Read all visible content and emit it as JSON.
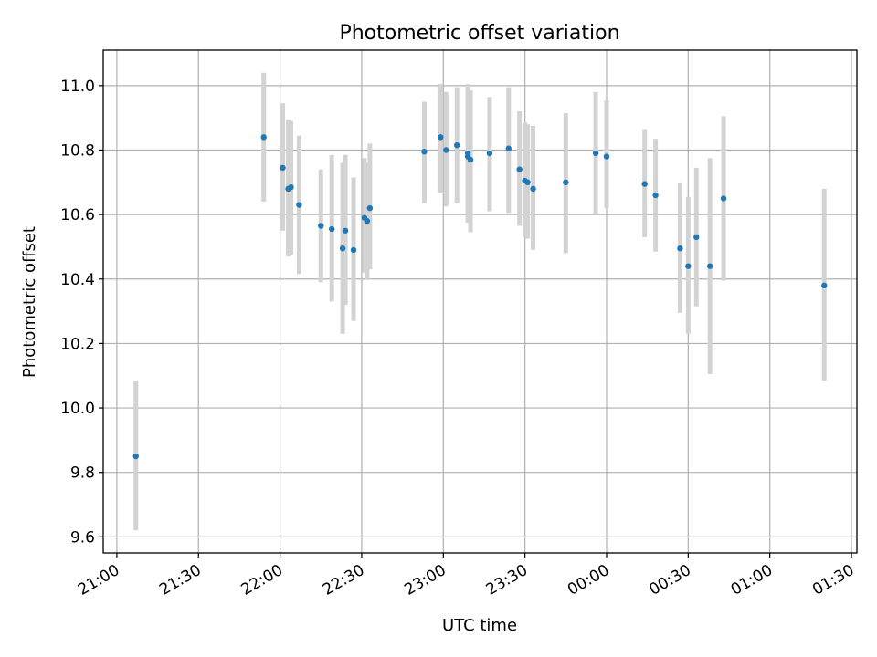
{
  "chart_data": {
    "type": "scatter",
    "title": "Photometric offset variation",
    "xlabel": "UTC time",
    "ylabel": "Photometric offset",
    "x_axis_type": "time",
    "xlim": [
      "20:55",
      "01:32"
    ],
    "ylim": [
      9.55,
      11.11
    ],
    "grid": true,
    "x_ticks": [
      {
        "time": "21:00",
        "label": "21:00"
      },
      {
        "time": "21:30",
        "label": "21:30"
      },
      {
        "time": "22:00",
        "label": "22:00"
      },
      {
        "time": "22:30",
        "label": "22:30"
      },
      {
        "time": "23:00",
        "label": "23:00"
      },
      {
        "time": "23:30",
        "label": "23:30"
      },
      {
        "time": "00:00",
        "label": "00:00"
      },
      {
        "time": "00:30",
        "label": "00:30"
      },
      {
        "time": "01:00",
        "label": "01:00"
      },
      {
        "time": "01:30",
        "label": "01:30"
      }
    ],
    "y_ticks": [
      {
        "value": 9.6,
        "label": "9.6"
      },
      {
        "value": 9.8,
        "label": "9.8"
      },
      {
        "value": 10.0,
        "label": "10.0"
      },
      {
        "value": 10.2,
        "label": "10.2"
      },
      {
        "value": 10.4,
        "label": "10.4"
      },
      {
        "value": 10.6,
        "label": "10.6"
      },
      {
        "value": 10.8,
        "label": "10.8"
      },
      {
        "value": 11.0,
        "label": "11.0"
      }
    ],
    "colors": {
      "marker": "#1f77b4",
      "errorbar": "#d3d3d3"
    },
    "points": [
      {
        "time": "21:07",
        "y": 9.85,
        "err_low": 9.62,
        "err_high": 10.085
      },
      {
        "time": "21:54",
        "y": 10.84,
        "err_low": 10.64,
        "err_high": 11.04
      },
      {
        "time": "22:01",
        "y": 10.745,
        "err_low": 10.55,
        "err_high": 10.945
      },
      {
        "time": "22:03",
        "y": 10.68,
        "err_low": 10.47,
        "err_high": 10.895
      },
      {
        "time": "22:04",
        "y": 10.685,
        "err_low": 10.475,
        "err_high": 10.89
      },
      {
        "time": "22:07",
        "y": 10.63,
        "err_low": 10.415,
        "err_high": 10.845
      },
      {
        "time": "22:15",
        "y": 10.565,
        "err_low": 10.39,
        "err_high": 10.74
      },
      {
        "time": "22:19",
        "y": 10.555,
        "err_low": 10.33,
        "err_high": 10.785
      },
      {
        "time": "22:23",
        "y": 10.495,
        "err_low": 10.23,
        "err_high": 10.76
      },
      {
        "time": "22:24",
        "y": 10.55,
        "err_low": 10.32,
        "err_high": 10.785
      },
      {
        "time": "22:27",
        "y": 10.49,
        "err_low": 10.27,
        "err_high": 10.715
      },
      {
        "time": "22:31",
        "y": 10.59,
        "err_low": 10.42,
        "err_high": 10.775
      },
      {
        "time": "22:32",
        "y": 10.58,
        "err_low": 10.4,
        "err_high": 10.76
      },
      {
        "time": "22:33",
        "y": 10.62,
        "err_low": 10.43,
        "err_high": 10.82
      },
      {
        "time": "22:53",
        "y": 10.795,
        "err_low": 10.635,
        "err_high": 10.95
      },
      {
        "time": "22:59",
        "y": 10.84,
        "err_low": 10.665,
        "err_high": 11.005
      },
      {
        "time": "23:01",
        "y": 10.8,
        "err_low": 10.625,
        "err_high": 10.98
      },
      {
        "time": "23:05",
        "y": 10.815,
        "err_low": 10.635,
        "err_high": 10.995
      },
      {
        "time": "23:09",
        "y": 10.78,
        "err_low": 10.575,
        "err_high": 10.985
      },
      {
        "time": "23:09",
        "y": 10.79,
        "err_low": 10.58,
        "err_high": 11.005
      },
      {
        "time": "23:10",
        "y": 10.77,
        "err_low": 10.545,
        "err_high": 10.985
      },
      {
        "time": "23:17",
        "y": 10.79,
        "err_low": 10.61,
        "err_high": 10.965
      },
      {
        "time": "23:24",
        "y": 10.805,
        "err_low": 10.605,
        "err_high": 10.995
      },
      {
        "time": "23:28",
        "y": 10.74,
        "err_low": 10.565,
        "err_high": 10.92
      },
      {
        "time": "23:30",
        "y": 10.705,
        "err_low": 10.53,
        "err_high": 10.885
      },
      {
        "time": "23:31",
        "y": 10.7,
        "err_low": 10.525,
        "err_high": 10.88
      },
      {
        "time": "23:33",
        "y": 10.68,
        "err_low": 10.49,
        "err_high": 10.875
      },
      {
        "time": "23:45",
        "y": 10.7,
        "err_low": 10.48,
        "err_high": 10.915
      },
      {
        "time": "23:56",
        "y": 10.79,
        "err_low": 10.6,
        "err_high": 10.98
      },
      {
        "time": "00:00",
        "y": 10.78,
        "err_low": 10.62,
        "err_high": 10.955
      },
      {
        "time": "00:14",
        "y": 10.695,
        "err_low": 10.53,
        "err_high": 10.865
      },
      {
        "time": "00:18",
        "y": 10.66,
        "err_low": 10.485,
        "err_high": 10.835
      },
      {
        "time": "00:27",
        "y": 10.495,
        "err_low": 10.295,
        "err_high": 10.7
      },
      {
        "time": "00:30",
        "y": 10.44,
        "err_low": 10.23,
        "err_high": 10.655
      },
      {
        "time": "00:33",
        "y": 10.53,
        "err_low": 10.315,
        "err_high": 10.745
      },
      {
        "time": "00:38",
        "y": 10.44,
        "err_low": 10.105,
        "err_high": 10.775
      },
      {
        "time": "00:43",
        "y": 10.65,
        "err_low": 10.395,
        "err_high": 10.905
      },
      {
        "time": "01:20",
        "y": 10.38,
        "err_low": 10.085,
        "err_high": 10.68
      }
    ]
  }
}
